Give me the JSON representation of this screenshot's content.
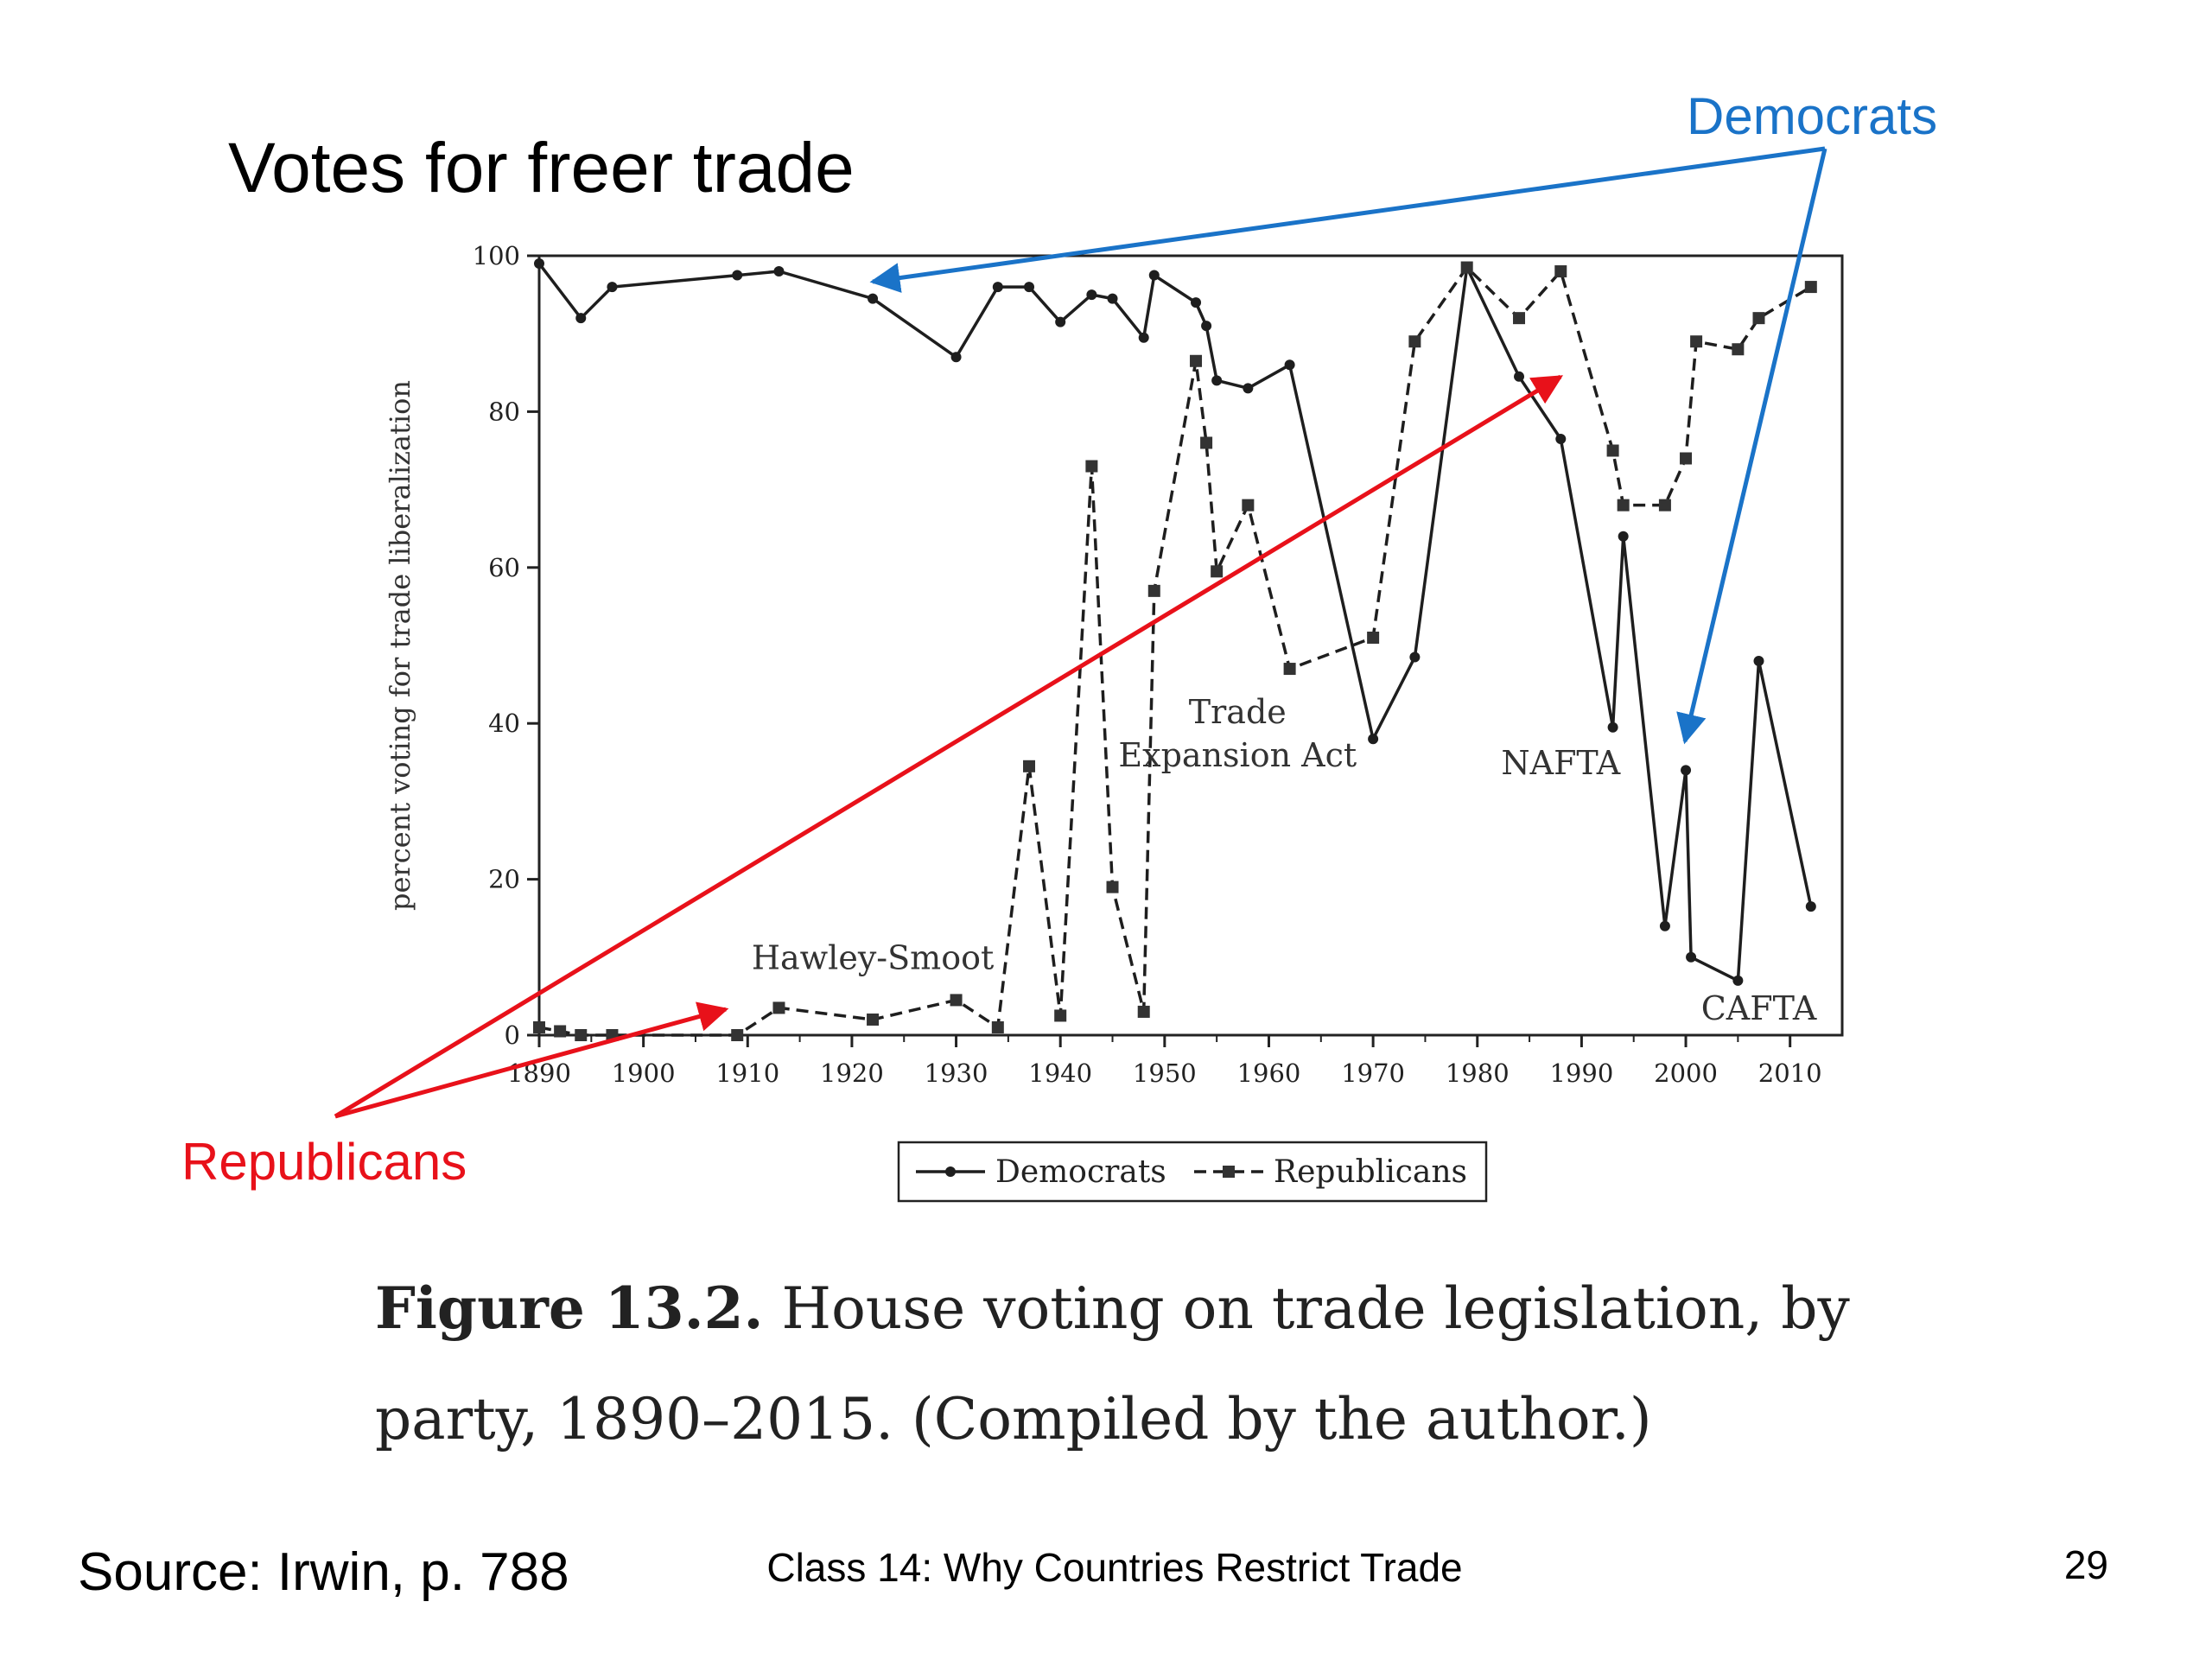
{
  "slide": {
    "title": "Votes for freer trade",
    "footer_source": "Source:  Irwin, p. 788",
    "footer_center": "Class 14:  Why Countries Restrict Trade",
    "page_number": "29"
  },
  "callouts": {
    "democrats": {
      "label": "Democrats",
      "color": "#1a73c8"
    },
    "republicans": {
      "label": "Republicans",
      "color": "#e8111a"
    }
  },
  "caption": {
    "figure_number": "Figure 13.2.",
    "text": "House voting on trade legislation, by party, 1890–2015. (Compiled by the author.)"
  },
  "chart_data": {
    "type": "line",
    "title": "",
    "xlabel": "",
    "ylabel": "percent voting for trade liberalization",
    "xlim": [
      1890,
      2015
    ],
    "ylim": [
      0,
      100
    ],
    "x_ticks": [
      1890,
      1900,
      1910,
      1920,
      1930,
      1940,
      1950,
      1960,
      1970,
      1980,
      1990,
      2000,
      2010
    ],
    "y_ticks": [
      0,
      20,
      40,
      60,
      80,
      100
    ],
    "grid": false,
    "legend": {
      "placement": "bottom-center",
      "entries": [
        "Democrats",
        "Republicans"
      ]
    },
    "series": [
      {
        "name": "Democrats",
        "style": "solid",
        "marker": "circle",
        "points": [
          [
            1890,
            99
          ],
          [
            1894,
            92
          ],
          [
            1897,
            96
          ],
          [
            1909,
            97.5
          ],
          [
            1913,
            98
          ],
          [
            1922,
            94.5
          ],
          [
            1930,
            87
          ],
          [
            1934,
            96
          ],
          [
            1937,
            96
          ],
          [
            1940,
            91.5
          ],
          [
            1943,
            95
          ],
          [
            1945,
            94.5
          ],
          [
            1948,
            89.5
          ],
          [
            1949,
            97.5
          ],
          [
            1953,
            94
          ],
          [
            1954,
            91
          ],
          [
            1955,
            84
          ],
          [
            1958,
            83
          ],
          [
            1962,
            86
          ],
          [
            1970,
            38
          ],
          [
            1974,
            48.5
          ],
          [
            1979,
            98.5
          ],
          [
            1984,
            84.5
          ],
          [
            1988,
            76.5
          ],
          [
            1993,
            39.5
          ],
          [
            1994,
            64
          ],
          [
            1998,
            14
          ],
          [
            2000,
            34
          ],
          [
            2000.5,
            10
          ],
          [
            2005,
            7
          ],
          [
            2007,
            48
          ],
          [
            2012,
            16.5
          ]
        ]
      },
      {
        "name": "Republicans",
        "style": "dashed",
        "marker": "square",
        "points": [
          [
            1890,
            1
          ],
          [
            1892,
            0.5
          ],
          [
            1894,
            0
          ],
          [
            1897,
            0
          ],
          [
            1909,
            0
          ],
          [
            1913,
            3.5
          ],
          [
            1922,
            2
          ],
          [
            1930,
            4.5
          ],
          [
            1934,
            1
          ],
          [
            1937,
            34.5
          ],
          [
            1940,
            2.5
          ],
          [
            1943,
            73
          ],
          [
            1945,
            19
          ],
          [
            1948,
            3
          ],
          [
            1949,
            57
          ],
          [
            1953,
            86.5
          ],
          [
            1954,
            76
          ],
          [
            1955,
            59.5
          ],
          [
            1958,
            68
          ],
          [
            1962,
            47
          ],
          [
            1970,
            51
          ],
          [
            1974,
            89
          ],
          [
            1979,
            98.5
          ],
          [
            1984,
            92
          ],
          [
            1988,
            98
          ],
          [
            1993,
            75
          ],
          [
            1994,
            68
          ],
          [
            1998,
            68
          ],
          [
            2000,
            74
          ],
          [
            2001,
            89
          ],
          [
            2005,
            88
          ],
          [
            2007,
            92
          ],
          [
            2012,
            96
          ]
        ]
      }
    ],
    "annotations": [
      {
        "lines": [
          "Hawley-Smoot"
        ],
        "x": 1922,
        "y": 8.5
      },
      {
        "lines": [
          "Trade",
          "Expansion Act"
        ],
        "x": 1957,
        "y": 40
      },
      {
        "lines": [
          "NAFTA"
        ],
        "x": 1988,
        "y": 33.5
      },
      {
        "lines": [
          "CAFTA"
        ],
        "x": 2007,
        "y": 2
      }
    ]
  }
}
